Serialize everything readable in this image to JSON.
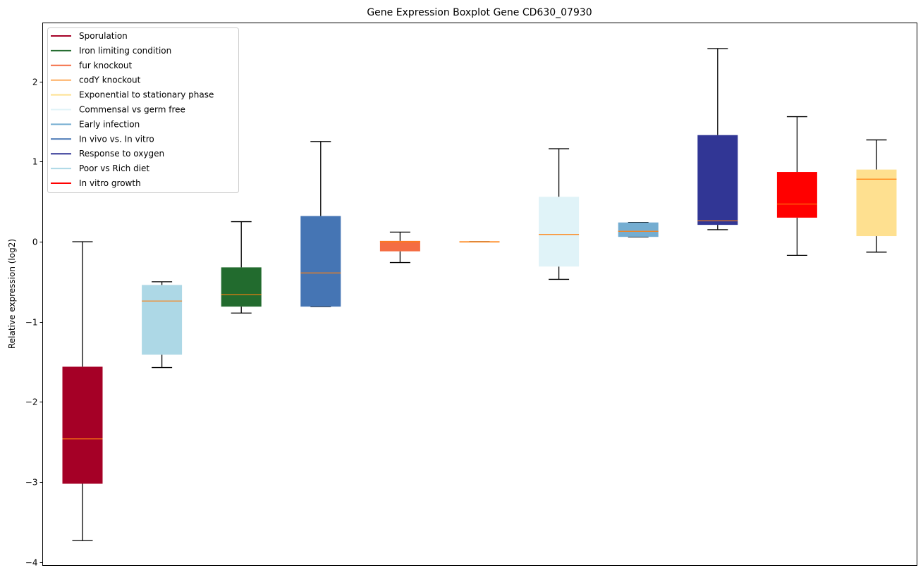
{
  "chart_data": {
    "type": "boxplot",
    "title": "Gene Expression Boxplot Gene CD630_07930",
    "xlabel": "",
    "ylabel": "Relative expression (log2)",
    "ylim": [
      -4.04,
      2.73
    ],
    "yticks": [
      2,
      1,
      0,
      -1,
      -2,
      -3,
      -4
    ],
    "ytick_labels": [
      "2",
      "1",
      "0",
      "−1",
      "−2",
      "−3",
      "−4"
    ],
    "grid": false,
    "legend_position": "top-left",
    "median_color": "#ff7f0e",
    "legend": [
      {
        "label": "Sporulation",
        "color": "#a50026"
      },
      {
        "label": "Iron limiting condition",
        "color": "#226b2e"
      },
      {
        "label": "fur knockout",
        "color": "#f46d43"
      },
      {
        "label": "codY knockout",
        "color": "#fdae61"
      },
      {
        "label": "Exponential to stationary phase",
        "color": "#fee090"
      },
      {
        "label": "Commensal vs germ free",
        "color": "#e0f3f8"
      },
      {
        "label": "Early infection",
        "color": "#74add1"
      },
      {
        "label": "In vivo vs. In vitro",
        "color": "#4575b4"
      },
      {
        "label": "Response to oxygen",
        "color": "#313695"
      },
      {
        "label": "Poor vs Rich diet",
        "color": "#add8e6"
      },
      {
        "label": "In vitro growth",
        "color": "#ff0000"
      }
    ],
    "boxes": [
      {
        "name": "Sporulation",
        "color": "#a50026",
        "whisker_low": -3.73,
        "q1": -3.02,
        "median": -2.46,
        "q3": -1.56,
        "whisker_high": 0.0
      },
      {
        "name": "Poor vs Rich diet",
        "color": "#add8e6",
        "whisker_low": -1.57,
        "q1": -1.41,
        "median": -0.74,
        "q3": -0.54,
        "whisker_high": -0.5
      },
      {
        "name": "Iron limiting condition",
        "color": "#226b2e",
        "whisker_low": -0.89,
        "q1": -0.81,
        "median": -0.66,
        "q3": -0.32,
        "whisker_high": 0.25
      },
      {
        "name": "In vivo vs. In vitro",
        "color": "#4575b4",
        "whisker_low": -0.81,
        "q1": -0.81,
        "median": -0.39,
        "q3": 0.32,
        "whisker_high": 1.25
      },
      {
        "name": "fur knockout",
        "color": "#f46d43",
        "whisker_low": -0.26,
        "q1": -0.12,
        "median": 0.0,
        "q3": 0.01,
        "whisker_high": 0.12
      },
      {
        "name": "codY knockout",
        "color": "#fdae61",
        "whisker_low": 0.0,
        "q1": 0.0,
        "median": 0.0,
        "q3": 0.0,
        "whisker_high": 0.0
      },
      {
        "name": "Commensal vs germ free",
        "color": "#e0f3f8",
        "whisker_low": -0.47,
        "q1": -0.31,
        "median": 0.09,
        "q3": 0.56,
        "whisker_high": 1.16
      },
      {
        "name": "Early infection",
        "color": "#74add1",
        "whisker_low": 0.06,
        "q1": 0.06,
        "median": 0.13,
        "q3": 0.24,
        "whisker_high": 0.24
      },
      {
        "name": "Response to oxygen",
        "color": "#313695",
        "whisker_low": 0.15,
        "q1": 0.21,
        "median": 0.26,
        "q3": 1.33,
        "whisker_high": 2.41
      },
      {
        "name": "In vitro growth",
        "color": "#ff0000",
        "whisker_low": -0.17,
        "q1": 0.3,
        "median": 0.47,
        "q3": 0.87,
        "whisker_high": 1.56
      },
      {
        "name": "Exponential to stationary phase",
        "color": "#fee090",
        "whisker_low": -0.13,
        "q1": 0.07,
        "median": 0.78,
        "q3": 0.9,
        "whisker_high": 1.27
      }
    ]
  }
}
